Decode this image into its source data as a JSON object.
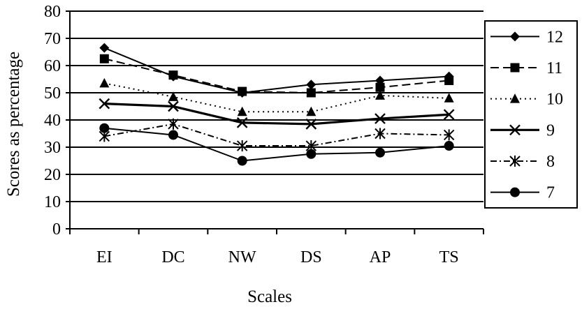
{
  "chart_data": {
    "type": "line",
    "title": "",
    "xlabel": "Scales",
    "ylabel": "Scores as percentage",
    "categories": [
      "EI",
      "DC",
      "NW",
      "DS",
      "AP",
      "TS"
    ],
    "ylim": [
      0,
      80
    ],
    "yticks": [
      0,
      10,
      20,
      30,
      40,
      50,
      60,
      70,
      80
    ],
    "grid": "horizontal",
    "legend_position": "right",
    "series": [
      {
        "name": "12",
        "marker": "diamond",
        "dash": "solid",
        "values": [
          66.5,
          56,
          50,
          53,
          54.5,
          56
        ]
      },
      {
        "name": "11",
        "marker": "square",
        "dash": "long-dash",
        "values": [
          62.5,
          56.5,
          50.5,
          50,
          52,
          54.5
        ]
      },
      {
        "name": "10",
        "marker": "triangle",
        "dash": "dotted",
        "values": [
          53.5,
          48.5,
          43,
          43,
          49,
          48
        ]
      },
      {
        "name": "9",
        "marker": "x",
        "dash": "solid-bold",
        "values": [
          46,
          45,
          39,
          38.5,
          40.5,
          42
        ]
      },
      {
        "name": "8",
        "marker": "asterisk",
        "dash": "dash-dot",
        "values": [
          34,
          38.5,
          30.5,
          30.5,
          35,
          34.5
        ]
      },
      {
        "name": "7",
        "marker": "circle",
        "dash": "solid",
        "values": [
          37,
          34.5,
          25,
          27.5,
          28,
          30.5
        ]
      }
    ]
  }
}
